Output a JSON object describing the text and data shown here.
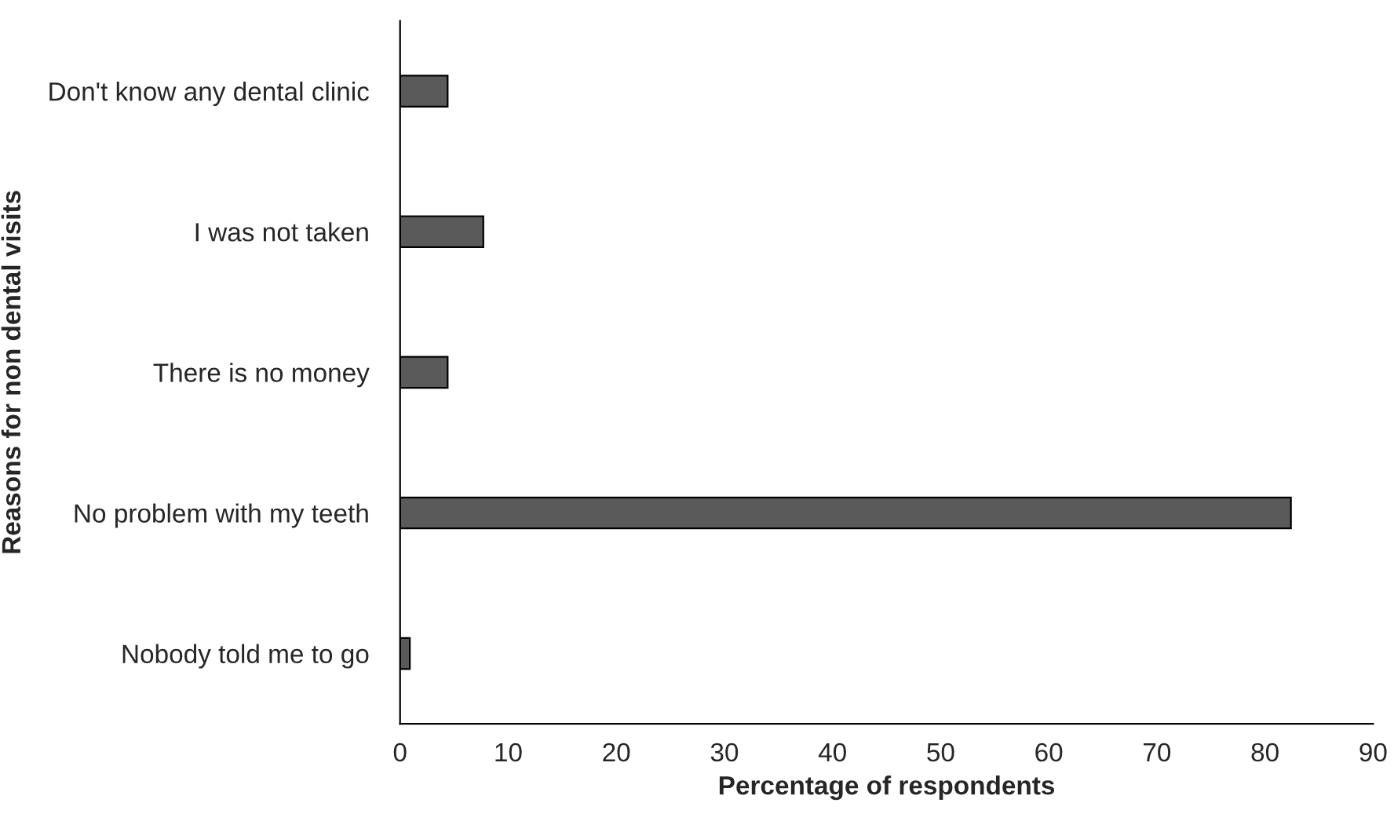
{
  "chart_data": {
    "type": "bar",
    "orientation": "horizontal",
    "xlabel": "Percentage of respondents",
    "ylabel": "Reasons for non dental visits",
    "categories": [
      "Don't know any dental clinic",
      "I was not taken",
      "There is no money",
      "No problem with my teeth",
      "Nobody told me to go"
    ],
    "values": [
      4.4,
      7.7,
      4.4,
      82.4,
      0.9
    ],
    "color": "#5a5a5a",
    "xlim": [
      0,
      90
    ],
    "xticks": [
      0,
      10,
      20,
      30,
      40,
      50,
      60,
      70,
      80,
      90
    ],
    "grid": false,
    "legend": false
  }
}
